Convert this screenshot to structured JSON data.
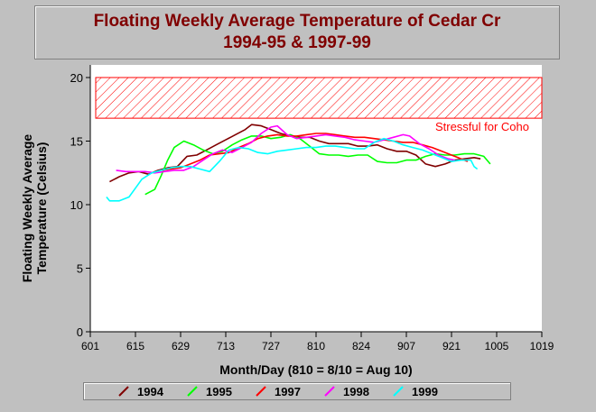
{
  "chart_data": {
    "type": "line",
    "title_line1": "Floating Weekly Average Temperature of Cedar Cr",
    "title_line2": "1994-95 & 1997-99",
    "xlabel": "Month/Day (810 = 8/10 = Aug 10)",
    "ylabel_line1": "Floating Weekly Average",
    "ylabel_line2": "Temperature (Celsius)",
    "x_tick_labels": [
      "601",
      "615",
      "629",
      "713",
      "727",
      "810",
      "824",
      "907",
      "921",
      "1005",
      "1019"
    ],
    "x_domain_days": [
      0,
      140
    ],
    "ylim": [
      0,
      20
    ],
    "y_ticks": [
      0,
      5,
      10,
      15,
      20
    ],
    "grid": false,
    "legend_position": "bottom",
    "threshold": {
      "label": "Stressful for Coho",
      "y_from": 16.8,
      "y_to": 20,
      "color": "#ff0000"
    },
    "series": [
      {
        "name": "1994",
        "color": "#800000",
        "points": [
          [
            6,
            11.8
          ],
          [
            9,
            12.2
          ],
          [
            12,
            12.5
          ],
          [
            15,
            12.6
          ],
          [
            18,
            12.4
          ],
          [
            21,
            12.7
          ],
          [
            24,
            12.9
          ],
          [
            27,
            13.0
          ],
          [
            30,
            13.8
          ],
          [
            33,
            13.9
          ],
          [
            36,
            14.3
          ],
          [
            39,
            14.7
          ],
          [
            42,
            15.1
          ],
          [
            45,
            15.5
          ],
          [
            48,
            15.9
          ],
          [
            50,
            16.3
          ],
          [
            53,
            16.2
          ],
          [
            56,
            15.9
          ],
          [
            59,
            15.6
          ],
          [
            62,
            15.4
          ],
          [
            65,
            15.3
          ],
          [
            68,
            15.3
          ],
          [
            71,
            15.0
          ],
          [
            74,
            14.8
          ],
          [
            77,
            14.8
          ],
          [
            80,
            14.8
          ],
          [
            83,
            14.6
          ],
          [
            86,
            14.6
          ],
          [
            89,
            14.7
          ],
          [
            92,
            14.4
          ],
          [
            95,
            14.2
          ],
          [
            98,
            14.2
          ],
          [
            101,
            13.9
          ],
          [
            104,
            13.2
          ],
          [
            107,
            13.0
          ],
          [
            110,
            13.2
          ],
          [
            113,
            13.5
          ],
          [
            116,
            13.6
          ],
          [
            119,
            13.7
          ],
          [
            121,
            13.6
          ]
        ]
      },
      {
        "name": "1995",
        "color": "#00ff00",
        "points": [
          [
            17,
            10.8
          ],
          [
            20,
            11.2
          ],
          [
            22,
            12.3
          ],
          [
            24,
            13.5
          ],
          [
            26,
            14.5
          ],
          [
            29,
            15.0
          ],
          [
            32,
            14.7
          ],
          [
            35,
            14.3
          ],
          [
            38,
            14.0
          ],
          [
            41,
            14.2
          ],
          [
            44,
            14.7
          ],
          [
            47,
            15.1
          ],
          [
            50,
            15.4
          ],
          [
            53,
            15.4
          ],
          [
            56,
            15.2
          ],
          [
            59,
            15.3
          ],
          [
            62,
            15.5
          ],
          [
            65,
            15.2
          ],
          [
            68,
            14.6
          ],
          [
            71,
            14.0
          ],
          [
            74,
            13.9
          ],
          [
            77,
            13.9
          ],
          [
            80,
            13.8
          ],
          [
            83,
            13.9
          ],
          [
            86,
            13.9
          ],
          [
            89,
            13.4
          ],
          [
            92,
            13.3
          ],
          [
            95,
            13.3
          ],
          [
            98,
            13.5
          ],
          [
            101,
            13.5
          ],
          [
            104,
            13.8
          ],
          [
            107,
            14.0
          ],
          [
            110,
            13.9
          ],
          [
            113,
            13.9
          ],
          [
            116,
            14.0
          ],
          [
            119,
            14.0
          ],
          [
            122,
            13.8
          ],
          [
            124,
            13.2
          ]
        ]
      },
      {
        "name": "1997",
        "color": "#ff0000",
        "points": [
          [
            22,
            12.7
          ],
          [
            25,
            12.8
          ],
          [
            28,
            12.9
          ],
          [
            31,
            13.2
          ],
          [
            34,
            13.5
          ],
          [
            37,
            13.9
          ],
          [
            40,
            14.0
          ],
          [
            43,
            14.1
          ],
          [
            46,
            14.5
          ],
          [
            49,
            14.8
          ],
          [
            52,
            15.2
          ],
          [
            55,
            15.4
          ],
          [
            58,
            15.5
          ],
          [
            61,
            15.4
          ],
          [
            64,
            15.4
          ],
          [
            67,
            15.5
          ],
          [
            70,
            15.6
          ],
          [
            73,
            15.6
          ],
          [
            76,
            15.5
          ],
          [
            79,
            15.4
          ],
          [
            82,
            15.3
          ],
          [
            85,
            15.3
          ],
          [
            88,
            15.2
          ],
          [
            91,
            15.1
          ],
          [
            94,
            15.0
          ],
          [
            97,
            14.9
          ],
          [
            100,
            14.9
          ],
          [
            103,
            14.7
          ],
          [
            106,
            14.5
          ],
          [
            109,
            14.2
          ],
          [
            112,
            13.9
          ],
          [
            115,
            13.6
          ],
          [
            117,
            13.4
          ]
        ]
      },
      {
        "name": "1998",
        "color": "#ff00ff",
        "points": [
          [
            8,
            12.7
          ],
          [
            11,
            12.6
          ],
          [
            14,
            12.6
          ],
          [
            17,
            12.6
          ],
          [
            20,
            12.5
          ],
          [
            23,
            12.6
          ],
          [
            26,
            12.7
          ],
          [
            29,
            12.7
          ],
          [
            32,
            13.0
          ],
          [
            35,
            13.5
          ],
          [
            38,
            14.0
          ],
          [
            41,
            14.3
          ],
          [
            44,
            14.1
          ],
          [
            47,
            14.5
          ],
          [
            50,
            14.9
          ],
          [
            53,
            15.6
          ],
          [
            56,
            16.1
          ],
          [
            58,
            16.2
          ],
          [
            61,
            15.5
          ],
          [
            64,
            15.2
          ],
          [
            67,
            15.3
          ],
          [
            70,
            15.4
          ],
          [
            73,
            15.5
          ],
          [
            76,
            15.4
          ],
          [
            79,
            15.3
          ],
          [
            82,
            15.1
          ],
          [
            85,
            15.0
          ],
          [
            88,
            14.9
          ],
          [
            91,
            15.1
          ],
          [
            94,
            15.3
          ],
          [
            97,
            15.5
          ],
          [
            99,
            15.4
          ],
          [
            102,
            14.8
          ],
          [
            105,
            14.4
          ],
          [
            108,
            13.9
          ],
          [
            111,
            13.6
          ],
          [
            113,
            13.5
          ]
        ]
      },
      {
        "name": "1999",
        "color": "#00ffff",
        "points": [
          [
            5,
            10.6
          ],
          [
            6,
            10.3
          ],
          [
            9,
            10.3
          ],
          [
            12,
            10.6
          ],
          [
            14,
            11.3
          ],
          [
            16,
            12.0
          ],
          [
            19,
            12.5
          ],
          [
            22,
            12.7
          ],
          [
            25,
            12.9
          ],
          [
            28,
            13.0
          ],
          [
            31,
            13.0
          ],
          [
            34,
            12.8
          ],
          [
            37,
            12.6
          ],
          [
            40,
            13.4
          ],
          [
            43,
            14.3
          ],
          [
            46,
            14.5
          ],
          [
            49,
            14.4
          ],
          [
            52,
            14.1
          ],
          [
            55,
            14.0
          ],
          [
            58,
            14.2
          ],
          [
            61,
            14.3
          ],
          [
            64,
            14.4
          ],
          [
            67,
            14.5
          ],
          [
            70,
            14.5
          ],
          [
            73,
            14.6
          ],
          [
            76,
            14.6
          ],
          [
            79,
            14.5
          ],
          [
            82,
            14.4
          ],
          [
            85,
            14.4
          ],
          [
            88,
            14.9
          ],
          [
            91,
            15.2
          ],
          [
            94,
            15.0
          ],
          [
            97,
            14.7
          ],
          [
            100,
            14.5
          ],
          [
            103,
            14.3
          ],
          [
            106,
            14.0
          ],
          [
            109,
            13.7
          ],
          [
            112,
            13.4
          ],
          [
            115,
            13.5
          ],
          [
            118,
            13.5
          ],
          [
            119,
            13.0
          ],
          [
            120,
            12.8
          ]
        ]
      }
    ]
  }
}
